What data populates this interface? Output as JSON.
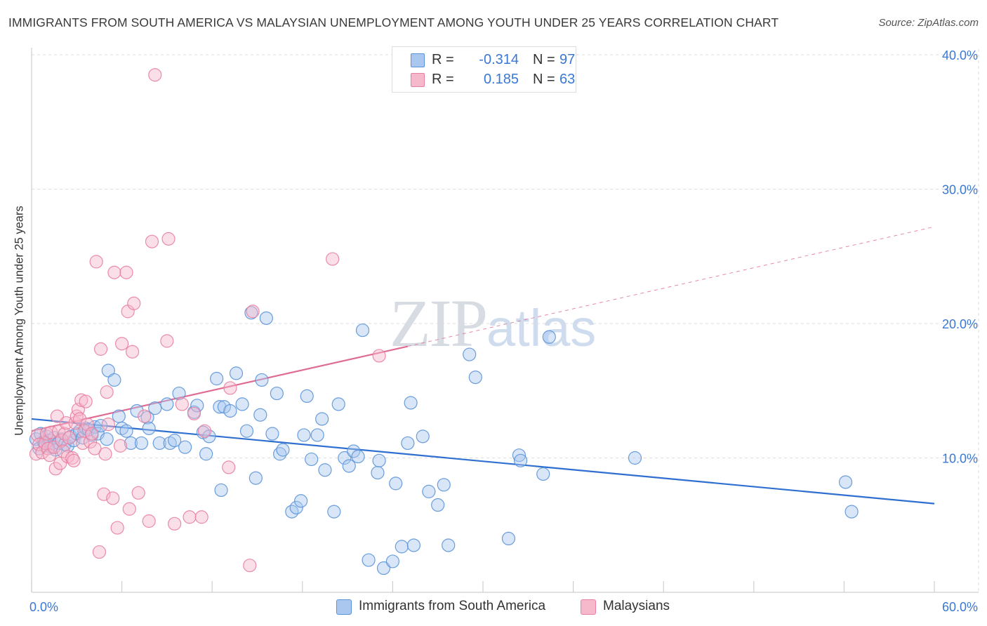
{
  "title": "IMMIGRANTS FROM SOUTH AMERICA VS MALAYSIAN UNEMPLOYMENT AMONG YOUTH UNDER 25 YEARS CORRELATION CHART",
  "source": "Source: ZipAtlas.com",
  "watermark": {
    "zip": "ZIP",
    "atlas": "atlas"
  },
  "legend_top": {
    "rows": [
      {
        "r_label": "R =",
        "r_value": "-0.314",
        "n_label": "N =",
        "n_value": "97"
      },
      {
        "r_label": "R =",
        "r_value": "0.185",
        "n_label": "N =",
        "n_value": "63"
      }
    ]
  },
  "legend_bottom": [
    "Immigrants from South America",
    "Malaysians"
  ],
  "colors": {
    "blue_fill": "#a9c7ef",
    "blue_stroke": "#5b93d8",
    "blue_line": "#2e6fd0",
    "pink_fill": "#f6b8cb",
    "pink_stroke": "#e87fa1",
    "pink_line": "#e06b93",
    "tick_text": "#3a78d4",
    "grid": "#dcdcdc"
  },
  "chart_data": {
    "type": "scatter",
    "title": "IMMIGRANTS FROM SOUTH AMERICA VS MALAYSIAN UNEMPLOYMENT AMONG YOUTH UNDER 25 YEARS CORRELATION CHART",
    "xlabel": "",
    "ylabel": "Unemployment Among Youth under 25 years",
    "xlim": [
      0,
      60
    ],
    "ylim": [
      0,
      40
    ],
    "x_tick_labels": [
      "0.0%",
      "60.0%"
    ],
    "y_ticks": [
      10,
      20,
      30,
      40
    ],
    "y_tick_labels": [
      "10.0%",
      "20.0%",
      "30.0%",
      "40.0%"
    ],
    "series": [
      {
        "name": "Immigrants from South America",
        "color": "blue",
        "R": -0.314,
        "N": 97,
        "trend": {
          "x0": 0,
          "y0": 12.9,
          "x1": 60,
          "y1": 6.6
        },
        "points": [
          [
            0.3,
            11.4
          ],
          [
            0.5,
            10.7
          ],
          [
            0.6,
            11.8
          ],
          [
            0.8,
            11.2
          ],
          [
            0.9,
            10.9
          ],
          [
            1.0,
            11.6
          ],
          [
            1.1,
            11.0
          ],
          [
            1.2,
            11.3
          ],
          [
            1.3,
            10.8
          ],
          [
            1.5,
            11.5
          ],
          [
            1.6,
            10.6
          ],
          [
            1.8,
            11.1
          ],
          [
            2.0,
            11.4
          ],
          [
            2.2,
            11.0
          ],
          [
            2.4,
            10.9
          ],
          [
            2.6,
            11.6
          ],
          [
            2.8,
            11.3
          ],
          [
            3.0,
            11.8
          ],
          [
            3.2,
            12.0
          ],
          [
            3.4,
            11.5
          ],
          [
            3.6,
            12.2
          ],
          [
            3.8,
            12.1
          ],
          [
            4.0,
            11.7
          ],
          [
            4.2,
            12.3
          ],
          [
            4.4,
            11.8
          ],
          [
            4.6,
            12.4
          ],
          [
            5.0,
            11.4
          ],
          [
            5.1,
            16.5
          ],
          [
            5.5,
            15.8
          ],
          [
            5.8,
            13.1
          ],
          [
            6.0,
            12.2
          ],
          [
            6.3,
            12.0
          ],
          [
            6.6,
            11.1
          ],
          [
            7.0,
            13.5
          ],
          [
            7.3,
            11.1
          ],
          [
            7.7,
            13.0
          ],
          [
            7.8,
            12.2
          ],
          [
            8.2,
            13.7
          ],
          [
            8.5,
            11.1
          ],
          [
            9.0,
            14.0
          ],
          [
            9.2,
            11.1
          ],
          [
            9.5,
            11.3
          ],
          [
            9.8,
            14.8
          ],
          [
            10.2,
            10.8
          ],
          [
            10.8,
            13.4
          ],
          [
            11.0,
            13.9
          ],
          [
            11.4,
            11.9
          ],
          [
            11.6,
            10.3
          ],
          [
            11.8,
            11.6
          ],
          [
            12.3,
            15.9
          ],
          [
            12.5,
            13.8
          ],
          [
            12.8,
            13.8
          ],
          [
            12.6,
            7.6
          ],
          [
            13.2,
            13.5
          ],
          [
            13.6,
            16.3
          ],
          [
            14.0,
            14.0
          ],
          [
            14.3,
            12.0
          ],
          [
            14.6,
            20.8
          ],
          [
            14.9,
            8.5
          ],
          [
            15.2,
            13.2
          ],
          [
            15.3,
            15.8
          ],
          [
            15.6,
            20.4
          ],
          [
            16.0,
            11.8
          ],
          [
            16.3,
            14.8
          ],
          [
            16.5,
            10.3
          ],
          [
            16.7,
            10.6
          ],
          [
            17.3,
            6.0
          ],
          [
            17.6,
            6.3
          ],
          [
            17.9,
            6.8
          ],
          [
            18.1,
            11.7
          ],
          [
            18.3,
            14.6
          ],
          [
            18.6,
            9.9
          ],
          [
            19.0,
            11.7
          ],
          [
            19.3,
            12.9
          ],
          [
            19.5,
            9.1
          ],
          [
            20.1,
            6.0
          ],
          [
            20.4,
            14.0
          ],
          [
            20.8,
            10.0
          ],
          [
            21.1,
            9.4
          ],
          [
            21.4,
            10.5
          ],
          [
            21.7,
            10.1
          ],
          [
            22.0,
            19.5
          ],
          [
            22.4,
            2.4
          ],
          [
            23.0,
            8.9
          ],
          [
            23.1,
            9.8
          ],
          [
            23.4,
            1.8
          ],
          [
            24.0,
            2.3
          ],
          [
            24.2,
            8.1
          ],
          [
            24.6,
            3.4
          ],
          [
            25.0,
            11.1
          ],
          [
            25.4,
            3.5
          ],
          [
            25.2,
            14.1
          ],
          [
            26.0,
            11.6
          ],
          [
            26.4,
            7.5
          ],
          [
            27.0,
            6.5
          ],
          [
            27.4,
            8.0
          ],
          [
            27.7,
            3.5
          ],
          [
            29.1,
            17.7
          ],
          [
            29.5,
            16.0
          ],
          [
            31.7,
            4.0
          ],
          [
            32.4,
            10.2
          ],
          [
            32.5,
            9.8
          ],
          [
            34.0,
            8.8
          ],
          [
            34.4,
            19.0
          ],
          [
            40.1,
            10.0
          ],
          [
            54.1,
            8.2
          ],
          [
            54.5,
            6.0
          ]
        ]
      },
      {
        "name": "Malaysians",
        "color": "pink",
        "R": 0.185,
        "N": 63,
        "trend": {
          "x0": 0,
          "y0": 12.0,
          "x1": 25.0,
          "y1": 18.3,
          "dash_x1": 60,
          "dash_y1": 27.2
        },
        "points": [
          [
            0.3,
            10.3
          ],
          [
            0.4,
            11.7
          ],
          [
            0.5,
            11.0
          ],
          [
            0.7,
            10.4
          ],
          [
            0.9,
            11.1
          ],
          [
            1.0,
            11.8
          ],
          [
            1.1,
            10.7
          ],
          [
            1.2,
            10.2
          ],
          [
            1.3,
            11.9
          ],
          [
            1.5,
            10.8
          ],
          [
            1.6,
            9.2
          ],
          [
            1.7,
            13.1
          ],
          [
            1.8,
            12.0
          ],
          [
            1.9,
            9.6
          ],
          [
            2.0,
            11.3
          ],
          [
            2.1,
            10.5
          ],
          [
            2.2,
            11.8
          ],
          [
            2.3,
            12.6
          ],
          [
            2.4,
            10.1
          ],
          [
            2.5,
            11.5
          ],
          [
            2.7,
            10.0
          ],
          [
            2.8,
            9.8
          ],
          [
            2.9,
            12.6
          ],
          [
            3.0,
            13.1
          ],
          [
            3.1,
            13.6
          ],
          [
            3.2,
            12.9
          ],
          [
            3.3,
            14.3
          ],
          [
            3.4,
            11.1
          ],
          [
            3.5,
            12.0
          ],
          [
            3.6,
            14.2
          ],
          [
            3.7,
            12.5
          ],
          [
            3.9,
            11.2
          ],
          [
            4.0,
            11.8
          ],
          [
            4.2,
            10.7
          ],
          [
            4.3,
            24.6
          ],
          [
            4.5,
            3.0
          ],
          [
            4.6,
            18.1
          ],
          [
            4.8,
            7.3
          ],
          [
            4.9,
            10.3
          ],
          [
            5.0,
            14.9
          ],
          [
            5.1,
            12.5
          ],
          [
            5.4,
            7.0
          ],
          [
            5.5,
            23.8
          ],
          [
            5.7,
            4.8
          ],
          [
            5.9,
            10.9
          ],
          [
            6.0,
            18.5
          ],
          [
            6.3,
            23.8
          ],
          [
            6.4,
            20.9
          ],
          [
            6.5,
            6.2
          ],
          [
            6.7,
            17.9
          ],
          [
            6.8,
            21.5
          ],
          [
            7.1,
            7.4
          ],
          [
            7.5,
            13.1
          ],
          [
            7.8,
            5.3
          ],
          [
            8.0,
            26.1
          ],
          [
            8.2,
            38.5
          ],
          [
            9.0,
            18.7
          ],
          [
            9.1,
            26.3
          ],
          [
            9.5,
            5.1
          ],
          [
            10.0,
            14.0
          ],
          [
            10.5,
            5.6
          ],
          [
            10.8,
            13.3
          ],
          [
            11.3,
            5.6
          ],
          [
            11.5,
            12.0
          ],
          [
            13.1,
            9.3
          ],
          [
            13.2,
            15.2
          ],
          [
            14.5,
            2.0
          ],
          [
            14.7,
            20.9
          ],
          [
            20.0,
            24.8
          ],
          [
            23.1,
            17.6
          ]
        ]
      }
    ]
  }
}
